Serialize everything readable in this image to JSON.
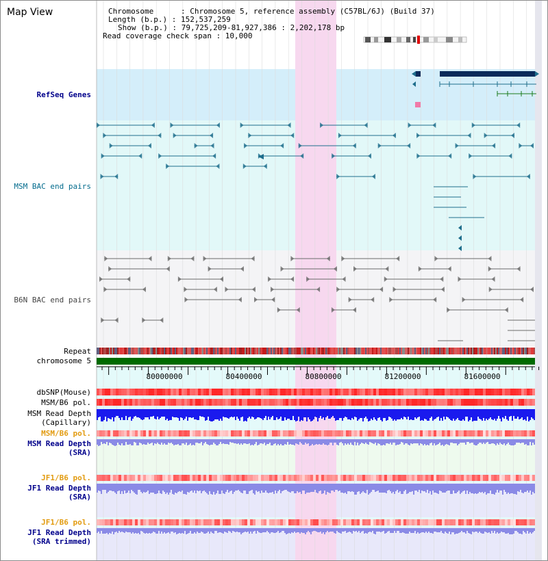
{
  "title": "Map View",
  "info": {
    "chromosome": "Chromosome      : Chromosome 5, reference assembly (C57BL/6J) (Build 37)",
    "length": "Length (b.p.) : 152,537,259",
    "show": "Show (b.p.) : 79,725,209-81,927,386 : 2,202,178 bp",
    "span": "Read coverage check span : 10,000"
  },
  "tracks": {
    "refseq": "RefSeq Genes",
    "msm_bac": "MSM BAC end pairs",
    "b6n_bac": "B6N BAC end pairs",
    "repeat": "Repeat",
    "chromosome": "chromosome 5",
    "dbsnp": "dbSNP(Mouse)",
    "msm_b6_pol_1": "MSM/B6 pol.",
    "msm_depth_cap_1": "MSM Read Depth",
    "msm_depth_cap_2": "(Capillary)",
    "msm_b6_pol_2": "MSM/B6 pol.",
    "msm_depth_sra_1": "MSM Read Depth",
    "msm_depth_sra_2": "(SRA)",
    "jf1_b6_pol_1": "JF1/B6 pol.",
    "jf1_depth_sra_1": "JF1 Read Depth",
    "jf1_depth_sra_2": "(SRA)",
    "jf1_b6_pol_2": "JF1/B6 pol.",
    "jf1_depth_trim_1": "JF1 Read Depth",
    "jf1_depth_trim_2": "(SRA trimmed)"
  },
  "axis": {
    "ticks": [
      "80000000",
      "80400000",
      "80800000",
      "81200000",
      "81600000"
    ]
  },
  "colors": {
    "highlight": "#f7d8ef",
    "refseq_bg": "#d4eefa",
    "msm_bg": "#e2f8f8",
    "b6n_bg": "#f4f4f6",
    "msm_bac": "#1e6e8c",
    "b6n_bac": "#6a6a6a",
    "chromosome": "#006a00",
    "label_blue": "#00008b",
    "label_teal": "#006a8c",
    "label_orange": "#e29b10",
    "depth_blue": "#1a1aee",
    "depth_light": "#8a8ae6"
  }
}
